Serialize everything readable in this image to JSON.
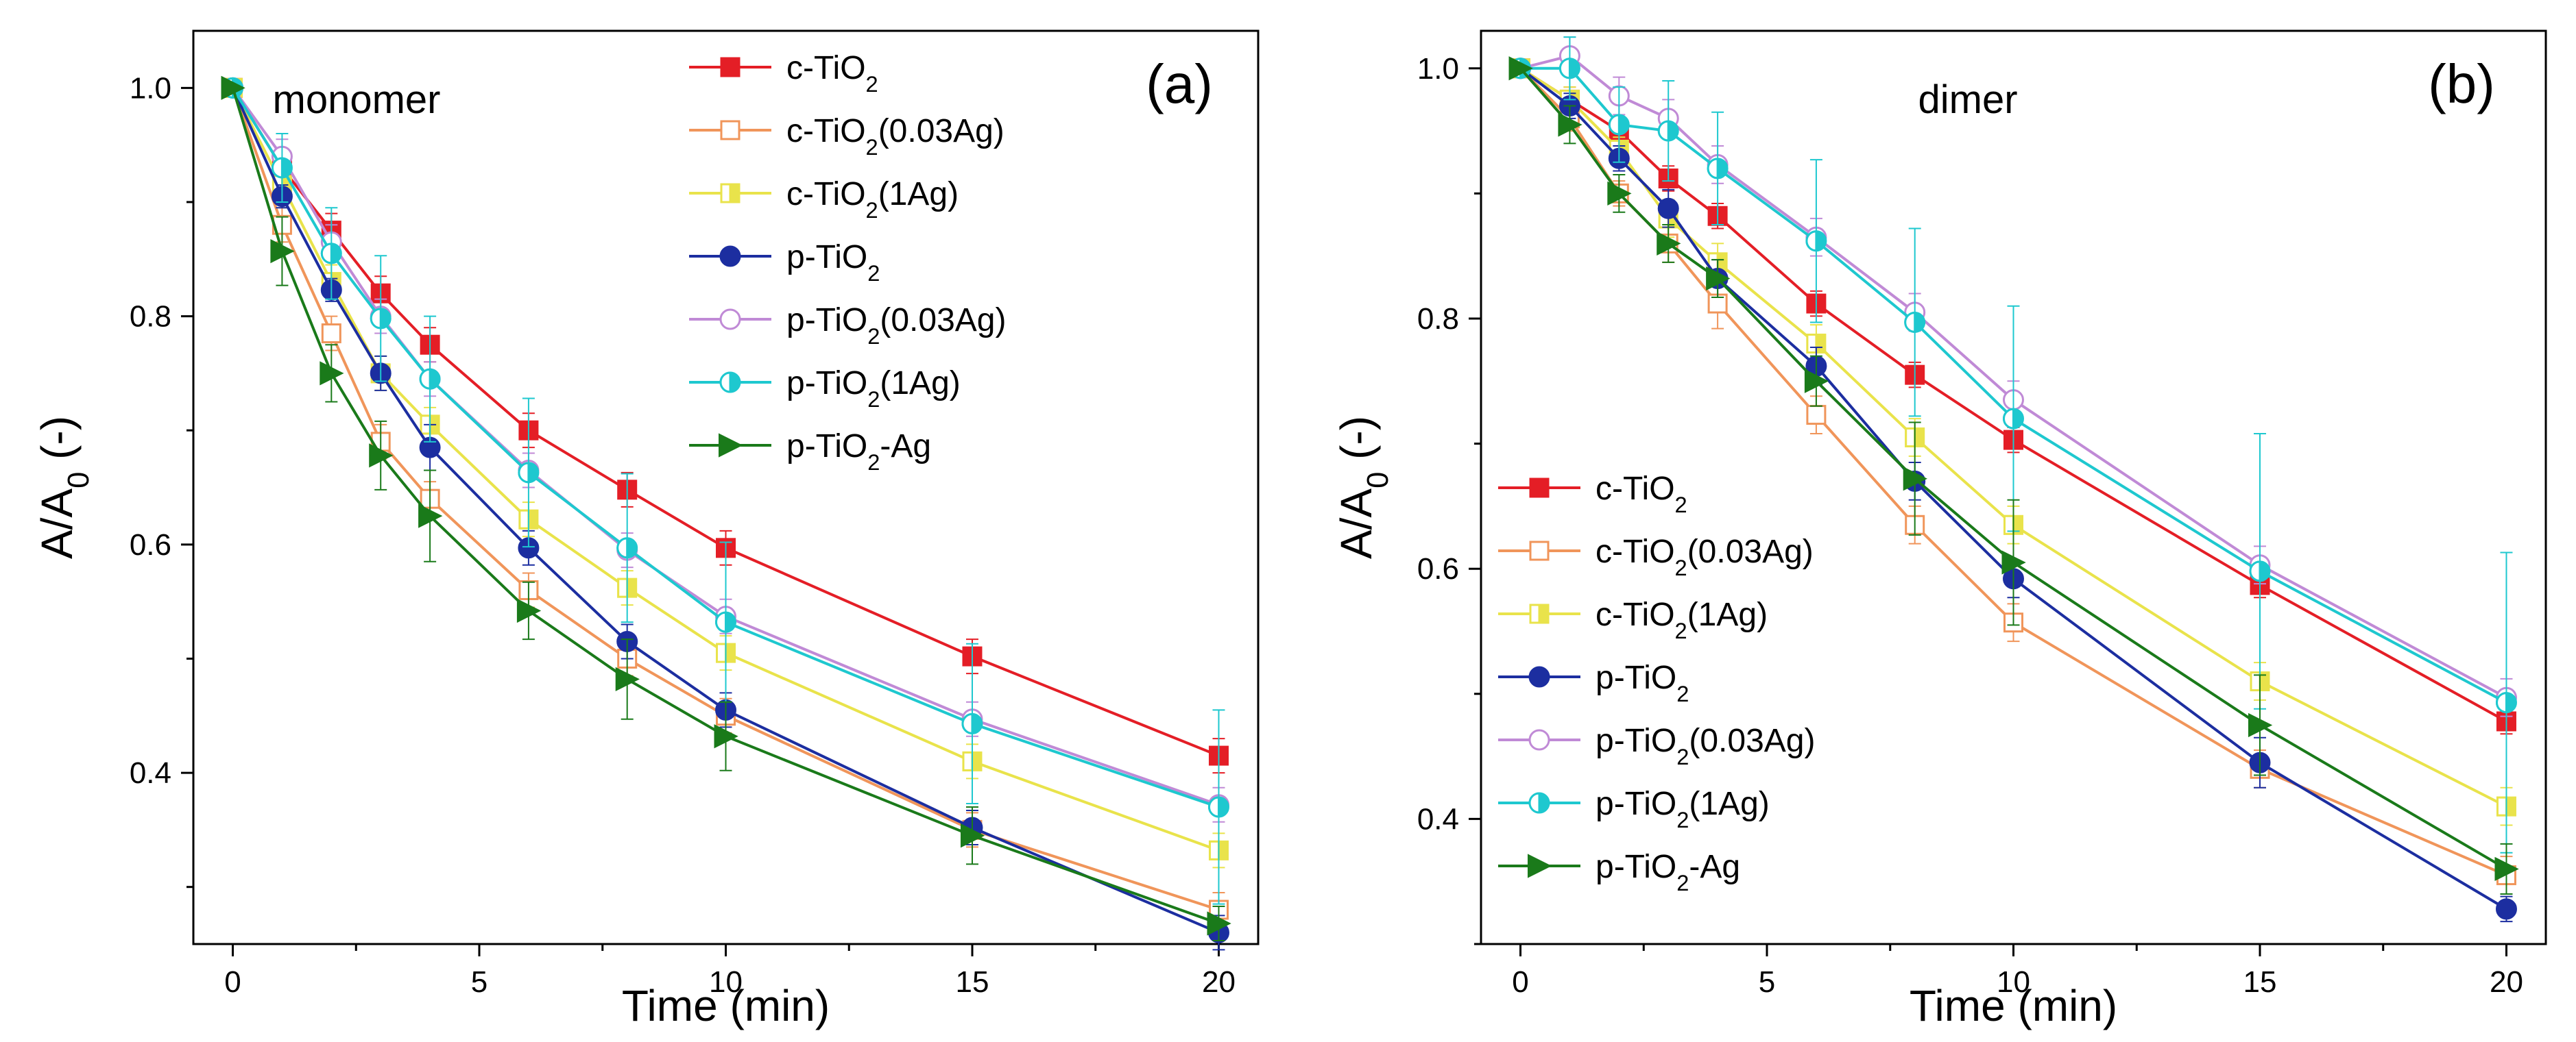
{
  "figure": {
    "caption_hidden": ""
  },
  "chart_data": [
    {
      "type": "line",
      "panel_label": "(a)",
      "title": "monomer",
      "xlabel": "Time (min)",
      "ylabel": "A/A0 (-)",
      "xlim": [
        -0.8,
        20.8
      ],
      "ylim": [
        0.25,
        1.05
      ],
      "xticks": [
        0,
        5,
        10,
        15,
        20
      ],
      "yticks": [
        0.4,
        0.6,
        0.8,
        1.0
      ],
      "xtick_labels": [
        "0",
        "5",
        "10",
        "15",
        "20"
      ],
      "ytick_labels": [
        "0.4",
        "0.6",
        "0.8",
        "1.0"
      ],
      "legend_position": "top-right",
      "x": [
        0,
        1,
        2,
        3,
        4,
        6,
        8,
        10,
        15,
        20
      ],
      "series": [
        {
          "name": "c-TiO2",
          "label_main": "c-TiO",
          "label_sub": "2",
          "label_suffix": "",
          "color": "#e41e26",
          "marker": "square",
          "filled": true,
          "values": [
            1.0,
            0.93,
            0.875,
            0.82,
            0.775,
            0.7,
            0.648,
            0.597,
            0.502,
            0.415
          ],
          "errors": [
            0,
            0.015,
            0.015,
            0.015,
            0.015,
            0.015,
            0.015,
            0.015,
            0.015,
            0.015
          ]
        },
        {
          "name": "c-TiO2(0.03Ag)",
          "label_main": "c-TiO",
          "label_sub": "2",
          "label_suffix": "(0.03Ag)",
          "color": "#f0955a",
          "marker": "square",
          "filled": false,
          "values": [
            1.0,
            0.88,
            0.785,
            0.69,
            0.64,
            0.56,
            0.5,
            0.45,
            0.35,
            0.28
          ],
          "errors": [
            0,
            0.015,
            0.015,
            0.015,
            0.015,
            0.015,
            0.015,
            0.015,
            0.015,
            0.015
          ]
        },
        {
          "name": "c-TiO2(1Ag)",
          "label_main": "c-TiO",
          "label_sub": "2",
          "label_suffix": "(1Ag)",
          "color": "#e9e34b",
          "marker": "square-half",
          "filled": true,
          "values": [
            1.0,
            0.915,
            0.83,
            0.75,
            0.705,
            0.622,
            0.562,
            0.505,
            0.41,
            0.332
          ],
          "errors": [
            0,
            0.015,
            0.015,
            0.015,
            0.015,
            0.015,
            0.015,
            0.015,
            0.015,
            0.015
          ]
        },
        {
          "name": "p-TiO2",
          "label_main": "p-TiO",
          "label_sub": "2",
          "label_suffix": "",
          "color": "#1c2ea0",
          "marker": "circle",
          "filled": true,
          "values": [
            1.0,
            0.905,
            0.823,
            0.75,
            0.685,
            0.597,
            0.515,
            0.455,
            0.352,
            0.26
          ],
          "errors": [
            0,
            0.01,
            0.01,
            0.015,
            0.02,
            0.015,
            0.015,
            0.015,
            0.015,
            0.015
          ]
        },
        {
          "name": "p-TiO2(0.03Ag)",
          "label_main": "p-TiO",
          "label_sub": "2",
          "label_suffix": "(0.03Ag)",
          "color": "#c08ad6",
          "marker": "circle",
          "filled": false,
          "values": [
            1.0,
            0.94,
            0.865,
            0.8,
            0.745,
            0.665,
            0.595,
            0.537,
            0.447,
            0.372
          ],
          "errors": [
            0,
            0.015,
            0.015,
            0.015,
            0.015,
            0.015,
            0.015,
            0.015,
            0.015,
            0.015
          ]
        },
        {
          "name": "p-TiO2(1Ag)",
          "label_main": "p-TiO",
          "label_sub": "2",
          "label_suffix": "(1Ag)",
          "color": "#1ec8cf",
          "marker": "circle-half",
          "filled": true,
          "values": [
            1.0,
            0.93,
            0.855,
            0.798,
            0.745,
            0.663,
            0.597,
            0.532,
            0.443,
            0.37
          ],
          "errors": [
            0,
            0.03,
            0.04,
            0.055,
            0.055,
            0.065,
            0.065,
            0.07,
            0.07,
            0.085
          ]
        },
        {
          "name": "p-TiO2-Ag",
          "label_main": "p-TiO",
          "label_sub": "2",
          "label_suffix": "-Ag",
          "color": "#1a7a1a",
          "marker": "triangle-right",
          "filled": true,
          "values": [
            1.0,
            0.857,
            0.75,
            0.678,
            0.625,
            0.542,
            0.482,
            0.432,
            0.345,
            0.268
          ],
          "errors": [
            0,
            0.03,
            0.025,
            0.03,
            0.04,
            0.025,
            0.035,
            0.03,
            0.025,
            0.015
          ]
        }
      ]
    },
    {
      "type": "line",
      "panel_label": "(b)",
      "title": "dimer",
      "xlabel": "Time (min)",
      "ylabel": "A/A0 (-)",
      "xlim": [
        -0.8,
        20.8
      ],
      "ylim": [
        0.3,
        1.03
      ],
      "xticks": [
        0,
        5,
        10,
        15,
        20
      ],
      "yticks": [
        0.4,
        0.6,
        0.8,
        1.0
      ],
      "xtick_labels": [
        "0",
        "5",
        "10",
        "15",
        "20"
      ],
      "ytick_labels": [
        "0.4",
        "0.6",
        "0.8",
        "1.0"
      ],
      "legend_position": "bottom-left",
      "x": [
        0,
        1,
        2,
        3,
        4,
        6,
        8,
        10,
        15,
        20
      ],
      "series": [
        {
          "name": "c-TiO2",
          "label_main": "c-TiO",
          "label_sub": "2",
          "label_suffix": "",
          "color": "#e41e26",
          "marker": "square",
          "filled": true,
          "values": [
            1.0,
            0.975,
            0.95,
            0.912,
            0.882,
            0.812,
            0.755,
            0.703,
            0.587,
            0.478
          ],
          "errors": [
            0,
            0.01,
            0.01,
            0.01,
            0.01,
            0.01,
            0.01,
            0.01,
            0.01,
            0.01
          ]
        },
        {
          "name": "c-TiO2(0.03Ag)",
          "label_main": "c-TiO",
          "label_sub": "2",
          "label_suffix": "(0.03Ag)",
          "color": "#f0955a",
          "marker": "square",
          "filled": false,
          "values": [
            1.0,
            0.96,
            0.9,
            0.86,
            0.812,
            0.723,
            0.635,
            0.557,
            0.44,
            0.355
          ],
          "errors": [
            0,
            0.01,
            0.01,
            0.015,
            0.02,
            0.015,
            0.015,
            0.015,
            0.015,
            0.015
          ]
        },
        {
          "name": "c-TiO2(1Ag)",
          "label_main": "c-TiO",
          "label_sub": "2",
          "label_suffix": "(1Ag)",
          "color": "#e9e34b",
          "marker": "square-half",
          "filled": true,
          "values": [
            1.0,
            0.975,
            0.935,
            0.88,
            0.845,
            0.78,
            0.705,
            0.635,
            0.51,
            0.41
          ],
          "errors": [
            0,
            0.01,
            0.01,
            0.015,
            0.015,
            0.015,
            0.015,
            0.015,
            0.015,
            0.015
          ]
        },
        {
          "name": "p-TiO2",
          "label_main": "p-TiO",
          "label_sub": "2",
          "label_suffix": "",
          "color": "#1c2ea0",
          "marker": "circle",
          "filled": true,
          "values": [
            1.0,
            0.97,
            0.928,
            0.888,
            0.832,
            0.762,
            0.67,
            0.592,
            0.445,
            0.328
          ],
          "errors": [
            0,
            0.01,
            0.01,
            0.015,
            0.015,
            0.015,
            0.015,
            0.015,
            0.02,
            0.01
          ]
        },
        {
          "name": "p-TiO2(0.03Ag)",
          "label_main": "p-TiO",
          "label_sub": "2",
          "label_suffix": "(0.03Ag)",
          "color": "#c08ad6",
          "marker": "circle",
          "filled": false,
          "values": [
            1.0,
            1.01,
            0.978,
            0.96,
            0.923,
            0.865,
            0.805,
            0.735,
            0.603,
            0.497
          ],
          "errors": [
            0,
            0.015,
            0.015,
            0.015,
            0.015,
            0.015,
            0.015,
            0.015,
            0.015,
            0.015
          ]
        },
        {
          "name": "p-TiO2(1Ag)",
          "label_main": "p-TiO",
          "label_sub": "2",
          "label_suffix": "(1Ag)",
          "color": "#1ec8cf",
          "marker": "circle-half",
          "filled": true,
          "values": [
            1.0,
            1.0,
            0.955,
            0.95,
            0.92,
            0.862,
            0.797,
            0.72,
            0.598,
            0.493
          ],
          "errors": [
            0,
            0.025,
            0.03,
            0.04,
            0.045,
            0.065,
            0.075,
            0.09,
            0.11,
            0.12
          ]
        },
        {
          "name": "p-TiO2-Ag",
          "label_main": "p-TiO",
          "label_sub": "2",
          "label_suffix": "-Ag",
          "color": "#1a7a1a",
          "marker": "triangle-right",
          "filled": true,
          "values": [
            1.0,
            0.955,
            0.9,
            0.86,
            0.832,
            0.75,
            0.672,
            0.605,
            0.475,
            0.36
          ],
          "errors": [
            0,
            0.015,
            0.015,
            0.015,
            0.015,
            0.02,
            0.045,
            0.05,
            0.04,
            0.02
          ]
        }
      ]
    }
  ]
}
